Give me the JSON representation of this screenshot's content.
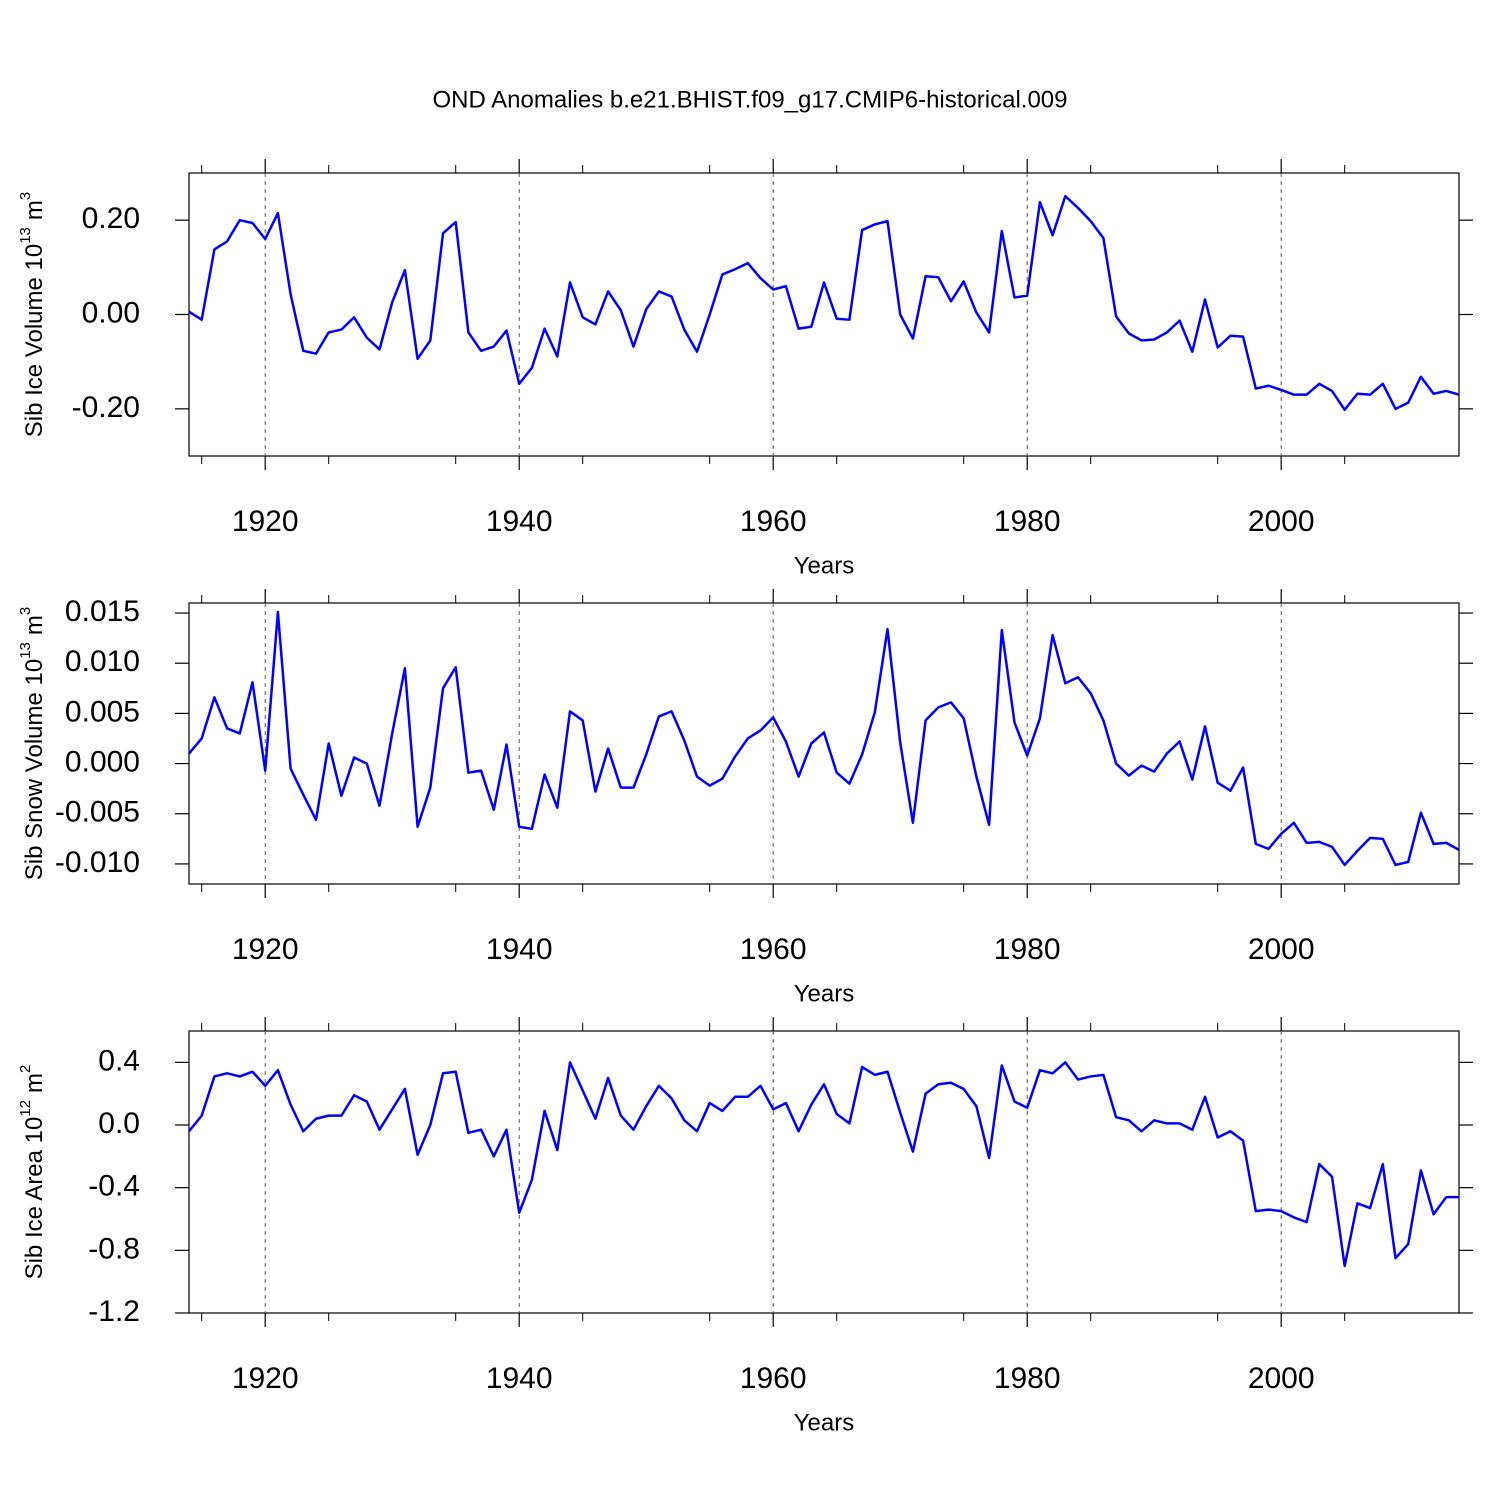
{
  "chart_data": [
    {
      "type": "line",
      "title": "OND Anomalies b.e21.BHIST.f09_g17.CMIP6-historical.009",
      "xlabel": "Years",
      "ylabel": {
        "text": "Sib Ice Volume 10",
        "exponent": "13",
        "unit": "m",
        "unit_exponent": "3"
      },
      "xlim": [
        1914,
        2014
      ],
      "xticks": [
        1920,
        1940,
        1960,
        1980,
        2000
      ],
      "xminorticks": [
        1915,
        1925,
        1935,
        1945,
        1955,
        1965,
        1975,
        1985,
        1995,
        2005
      ],
      "ylim": [
        -0.3,
        0.3
      ],
      "yticks": [
        {
          "value": 0.2,
          "label": "0.20"
        },
        {
          "value": 0,
          "label": "0.00"
        },
        {
          "value": -0.2,
          "label": "-0.20"
        }
      ],
      "grid": true,
      "x": [
        1914,
        1915,
        1916,
        1917,
        1918,
        1919,
        1920,
        1921,
        1922,
        1923,
        1924,
        1925,
        1926,
        1927,
        1928,
        1929,
        1930,
        1931,
        1932,
        1933,
        1934,
        1935,
        1936,
        1937,
        1938,
        1939,
        1940,
        1941,
        1942,
        1943,
        1944,
        1945,
        1946,
        1947,
        1948,
        1949,
        1950,
        1951,
        1952,
        1953,
        1954,
        1955,
        1956,
        1957,
        1958,
        1959,
        1960,
        1961,
        1962,
        1963,
        1964,
        1965,
        1966,
        1967,
        1968,
        1969,
        1970,
        1971,
        1972,
        1973,
        1974,
        1975,
        1976,
        1977,
        1978,
        1979,
        1980,
        1981,
        1982,
        1983,
        1984,
        1985,
        1986,
        1987,
        1988,
        1989,
        1990,
        1991,
        1992,
        1993,
        1994,
        1995,
        1996,
        1997,
        1998,
        1999,
        2000,
        2001,
        2002,
        2003,
        2004,
        2005,
        2006,
        2007,
        2008,
        2009,
        2010,
        2011,
        2012,
        2013,
        2014
      ],
      "series": [
        {
          "color": "#0000ff",
          "values": [
            0.006,
            -0.011,
            0.138,
            0.155,
            0.2,
            0.194,
            0.16,
            0.215,
            0.043,
            -0.077,
            -0.083,
            -0.038,
            -0.032,
            -0.006,
            -0.049,
            -0.074,
            0.026,
            0.094,
            -0.094,
            -0.055,
            0.172,
            0.196,
            -0.038,
            -0.077,
            -0.068,
            -0.034,
            -0.147,
            -0.113,
            -0.03,
            -0.089,
            0.068,
            -0.006,
            -0.021,
            0.049,
            0.009,
            -0.068,
            0.011,
            0.049,
            0.038,
            -0.032,
            -0.079,
            0.0,
            0.085,
            0.096,
            0.109,
            0.077,
            0.053,
            0.06,
            -0.03,
            -0.026,
            0.068,
            -0.009,
            -0.011,
            0.179,
            0.191,
            0.198,
            0.0,
            -0.051,
            0.081,
            0.079,
            0.028,
            0.07,
            0.004,
            -0.038,
            0.177,
            0.036,
            0.04,
            0.238,
            0.168,
            0.251,
            0.226,
            0.198,
            0.162,
            -0.004,
            -0.04,
            -0.055,
            -0.053,
            -0.038,
            -0.013,
            -0.079,
            0.032,
            -0.07,
            -0.045,
            -0.047,
            -0.157,
            -0.151,
            -0.16,
            -0.17,
            -0.17,
            -0.147,
            -0.162,
            -0.202,
            -0.168,
            -0.17,
            -0.147,
            -0.2,
            -0.187,
            -0.132,
            -0.168,
            -0.162,
            -0.17
          ]
        }
      ]
    },
    {
      "type": "line",
      "xlabel": "Years",
      "ylabel": {
        "text": "Sib Snow Volume 10",
        "exponent": "13",
        "unit": "m",
        "unit_exponent": "3"
      },
      "xlim": [
        1914,
        2014
      ],
      "xticks": [
        1920,
        1940,
        1960,
        1980,
        2000
      ],
      "xminorticks": [
        1915,
        1925,
        1935,
        1945,
        1955,
        1965,
        1975,
        1985,
        1995,
        2005
      ],
      "ylim": [
        -0.012,
        0.016
      ],
      "yticks": [
        0.015,
        {
          "value": 0.01,
          "label": "0.010"
        },
        0.005,
        {
          "value": 0,
          "label": "0.000"
        },
        -0.005,
        {
          "value": -0.01,
          "label": "-0.010"
        }
      ],
      "grid": true,
      "x": [
        1914,
        1915,
        1916,
        1917,
        1918,
        1919,
        1920,
        1921,
        1922,
        1923,
        1924,
        1925,
        1926,
        1927,
        1928,
        1929,
        1930,
        1931,
        1932,
        1933,
        1934,
        1935,
        1936,
        1937,
        1938,
        1939,
        1940,
        1941,
        1942,
        1943,
        1944,
        1945,
        1946,
        1947,
        1948,
        1949,
        1950,
        1951,
        1952,
        1953,
        1954,
        1955,
        1956,
        1957,
        1958,
        1959,
        1960,
        1961,
        1962,
        1963,
        1964,
        1965,
        1966,
        1967,
        1968,
        1969,
        1970,
        1971,
        1972,
        1973,
        1974,
        1975,
        1976,
        1977,
        1978,
        1979,
        1980,
        1981,
        1982,
        1983,
        1984,
        1985,
        1986,
        1987,
        1988,
        1989,
        1990,
        1991,
        1992,
        1993,
        1994,
        1995,
        1996,
        1997,
        1998,
        1999,
        2000,
        2001,
        2002,
        2003,
        2004,
        2005,
        2006,
        2007,
        2008,
        2009,
        2010,
        2011,
        2012,
        2013,
        2014
      ],
      "series": [
        {
          "color": "#0000ff",
          "values": [
            0.001,
            0.0025,
            0.0066,
            0.0035,
            0.003,
            0.0081,
            -0.0007,
            0.0151,
            -0.0005,
            -0.0031,
            -0.0056,
            0.002,
            -0.0032,
            0.0006,
            0.0,
            -0.0042,
            0.003,
            0.0095,
            -0.0063,
            -0.0024,
            0.0075,
            0.0096,
            -0.0009,
            -0.0007,
            -0.0046,
            0.0019,
            -0.0063,
            -0.0065,
            -0.0011,
            -0.0044,
            0.0052,
            0.0043,
            -0.0028,
            0.0015,
            -0.0024,
            -0.0024,
            0.0009,
            0.0047,
            0.0052,
            0.0023,
            -0.0013,
            -0.0022,
            -0.0015,
            0.0007,
            0.0025,
            0.0033,
            0.0046,
            0.0022,
            -0.0013,
            0.002,
            0.0031,
            -0.0009,
            -0.002,
            0.0009,
            0.0051,
            0.0134,
            0.0021,
            -0.0059,
            0.0043,
            0.0056,
            0.0061,
            0.0045,
            -0.0013,
            -0.0061,
            0.0133,
            0.0041,
            0.0008,
            0.0045,
            0.0128,
            0.008,
            0.0086,
            0.007,
            0.0043,
            0.0,
            -0.0012,
            -0.0002,
            -0.0008,
            0.001,
            0.0022,
            -0.0016,
            0.0037,
            -0.0019,
            -0.0027,
            -0.0004,
            -0.008,
            -0.0085,
            -0.007,
            -0.0059,
            -0.0079,
            -0.0078,
            -0.0083,
            -0.0101,
            -0.0087,
            -0.0074,
            -0.0075,
            -0.0101,
            -0.0098,
            -0.0049,
            -0.008,
            -0.0079,
            -0.0086
          ]
        }
      ]
    },
    {
      "type": "line",
      "xlabel": "Years",
      "ylabel": {
        "text": "Sib Ice Area 10",
        "exponent": "12",
        "unit": "m",
        "unit_exponent": "2"
      },
      "xlim": [
        1914,
        2014
      ],
      "xticks": [
        1920,
        1940,
        1960,
        1980,
        2000
      ],
      "xminorticks": [
        1915,
        1925,
        1935,
        1945,
        1955,
        1965,
        1975,
        1985,
        1995,
        2005
      ],
      "ylim": [
        -1.2,
        0.6
      ],
      "yticks": [
        0.4,
        {
          "value": 0,
          "label": "0.0"
        },
        -0.4,
        -0.8,
        -1.2
      ],
      "grid": true,
      "x": [
        1914,
        1915,
        1916,
        1917,
        1918,
        1919,
        1920,
        1921,
        1922,
        1923,
        1924,
        1925,
        1926,
        1927,
        1928,
        1929,
        1930,
        1931,
        1932,
        1933,
        1934,
        1935,
        1936,
        1937,
        1938,
        1939,
        1940,
        1941,
        1942,
        1943,
        1944,
        1945,
        1946,
        1947,
        1948,
        1949,
        1950,
        1951,
        1952,
        1953,
        1954,
        1955,
        1956,
        1957,
        1958,
        1959,
        1960,
        1961,
        1962,
        1963,
        1964,
        1965,
        1966,
        1967,
        1968,
        1969,
        1970,
        1971,
        1972,
        1973,
        1974,
        1975,
        1976,
        1977,
        1978,
        1979,
        1980,
        1981,
        1982,
        1983,
        1984,
        1985,
        1986,
        1987,
        1988,
        1989,
        1990,
        1991,
        1992,
        1993,
        1994,
        1995,
        1996,
        1997,
        1998,
        1999,
        2000,
        2001,
        2002,
        2003,
        2004,
        2005,
        2006,
        2007,
        2008,
        2009,
        2010,
        2011,
        2012,
        2013,
        2014
      ],
      "series": [
        {
          "color": "#0000ff",
          "values": [
            -0.04,
            0.06,
            0.31,
            0.33,
            0.31,
            0.34,
            0.25,
            0.35,
            0.13,
            -0.04,
            0.04,
            0.06,
            0.06,
            0.19,
            0.15,
            -0.03,
            0.1,
            0.23,
            -0.19,
            0.0,
            0.33,
            0.34,
            -0.05,
            -0.03,
            -0.2,
            -0.03,
            -0.56,
            -0.35,
            0.09,
            -0.16,
            0.4,
            0.22,
            0.04,
            0.3,
            0.06,
            -0.03,
            0.12,
            0.25,
            0.17,
            0.03,
            -0.04,
            0.14,
            0.09,
            0.18,
            0.18,
            0.25,
            0.1,
            0.14,
            -0.04,
            0.13,
            0.26,
            0.07,
            0.01,
            0.37,
            0.32,
            0.34,
            0.08,
            -0.17,
            0.2,
            0.26,
            0.27,
            0.23,
            0.12,
            -0.21,
            0.38,
            0.15,
            0.11,
            0.35,
            0.33,
            0.4,
            0.29,
            0.31,
            0.32,
            0.05,
            0.03,
            -0.04,
            0.03,
            0.01,
            0.01,
            -0.03,
            0.18,
            -0.08,
            -0.04,
            -0.1,
            -0.55,
            -0.54,
            -0.55,
            -0.59,
            -0.62,
            -0.25,
            -0.33,
            -0.9,
            -0.5,
            -0.53,
            -0.25,
            -0.85,
            -0.76,
            -0.29,
            -0.57,
            -0.46,
            -0.46
          ]
        }
      ]
    }
  ]
}
